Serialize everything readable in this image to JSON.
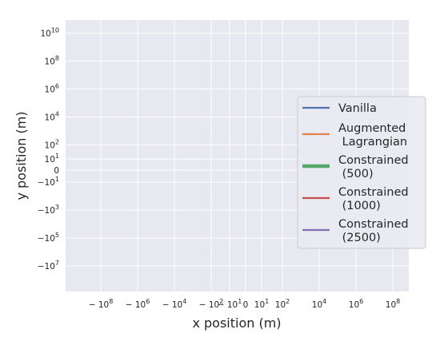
{
  "chart_data": {
    "type": "line",
    "title": "",
    "xlabel": "x position (m)",
    "ylabel": "y position (m)",
    "x_scale": "symlog",
    "y_scale": "symlog",
    "grid": true,
    "legend_position": "center-right",
    "x_ticks": [
      {
        "value": -100000000,
        "base": "− 10",
        "exp": "8"
      },
      {
        "value": -1000000,
        "base": "− 10",
        "exp": "6"
      },
      {
        "value": -10000,
        "base": "− 10",
        "exp": "4"
      },
      {
        "value": -100,
        "base": "− 10",
        "exp": "2"
      },
      {
        "value": -10,
        "base": "− 10",
        "exp": "1"
      },
      {
        "value": 0,
        "base": "0",
        "exp": ""
      },
      {
        "value": 10,
        "base": "10",
        "exp": "1"
      },
      {
        "value": 100,
        "base": "10",
        "exp": "2"
      },
      {
        "value": 10000,
        "base": "10",
        "exp": "4"
      },
      {
        "value": 1000000,
        "base": "10",
        "exp": "6"
      },
      {
        "value": 100000000,
        "base": "10",
        "exp": "8"
      }
    ],
    "y_ticks": [
      {
        "value": 10000000000,
        "base": "10",
        "exp": "10"
      },
      {
        "value": 100000000,
        "base": "10",
        "exp": "8"
      },
      {
        "value": 1000000,
        "base": "10",
        "exp": "6"
      },
      {
        "value": 10000,
        "base": "10",
        "exp": "4"
      },
      {
        "value": 100,
        "base": "10",
        "exp": "2"
      },
      {
        "value": 10,
        "base": "10",
        "exp": "1"
      },
      {
        "value": 0,
        "base": "0",
        "exp": ""
      },
      {
        "value": -10,
        "base": "−10",
        "exp": "1"
      },
      {
        "value": -1000,
        "base": "−10",
        "exp": "3"
      },
      {
        "value": -100000,
        "base": "−10",
        "exp": "5"
      },
      {
        "value": -10000000,
        "base": "−10",
        "exp": "7"
      }
    ],
    "series": [
      {
        "name": "Vanilla",
        "color": "#4c72b0",
        "line_width": "normal",
        "points": []
      },
      {
        "name": "Augmented\n Lagrangian",
        "color": "#dd8452",
        "line_width": "normal",
        "points": []
      },
      {
        "name": "Constrained\n (500)",
        "color": "#55a868",
        "line_width": "thick",
        "points": []
      },
      {
        "name": "Constrained\n (1000)",
        "color": "#c44e52",
        "line_width": "normal",
        "points": []
      },
      {
        "name": "Constrained\n (2500)",
        "color": "#8172b3",
        "line_width": "normal",
        "points": []
      }
    ]
  }
}
